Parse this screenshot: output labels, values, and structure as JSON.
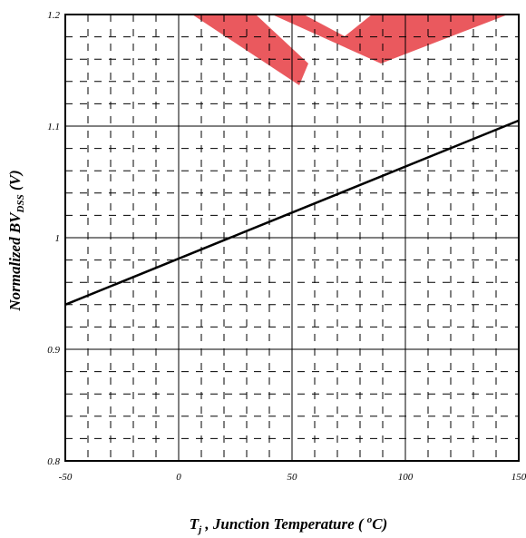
{
  "chart_data": {
    "type": "line",
    "title": "",
    "xlabel": {
      "parts": [
        "T",
        "j",
        " , Junction Temperature ( ",
        "o",
        "C)"
      ]
    },
    "ylabel": {
      "parts": [
        "Normalized BV",
        "DSS",
        " (V)"
      ]
    },
    "xlim": [
      -50,
      150
    ],
    "ylim": [
      0.8,
      1.2
    ],
    "xticks": [
      -50,
      0,
      50,
      100,
      150
    ],
    "yticks": [
      0.8,
      0.9,
      1.0,
      1.1,
      1.2
    ],
    "xtick_labels": [
      "-50",
      "0",
      "50",
      "100",
      "150"
    ],
    "ytick_labels": [
      "0.8",
      "0.9",
      "1",
      "1.1",
      "1.2"
    ],
    "grid": true,
    "minor_grid": "dashed",
    "legend": "none",
    "colors": {
      "line": "#000000",
      "watermark": "#e8474c"
    },
    "series": [
      {
        "x": [
          -50,
          150
        ],
        "y": [
          0.94,
          1.105
        ]
      }
    ]
  }
}
